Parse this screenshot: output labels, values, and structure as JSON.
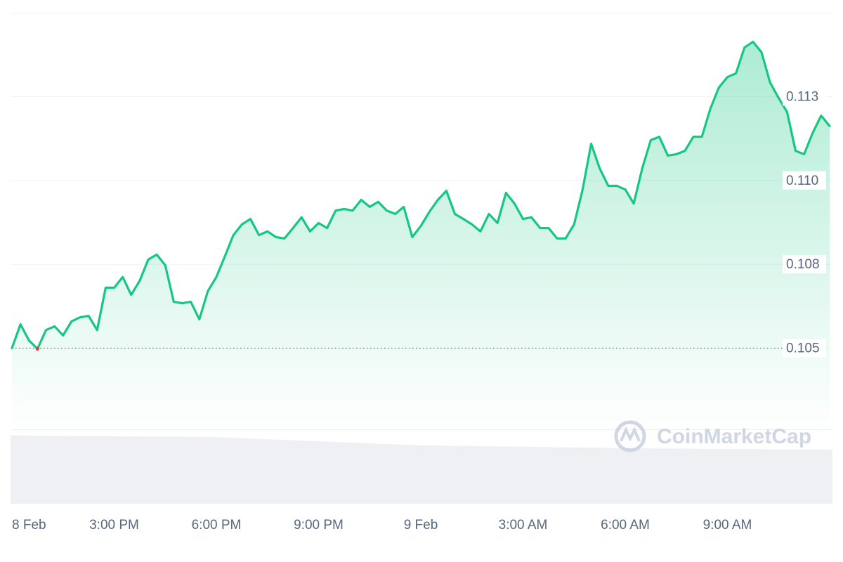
{
  "chart_data": {
    "type": "line",
    "watermark": "CoinMarketCap",
    "color": "#16c784",
    "categories": [
      "8 Feb",
      null,
      null,
      null,
      null,
      null,
      null,
      null,
      null,
      null,
      null,
      null,
      "3:00 PM",
      null,
      null,
      null,
      null,
      null,
      null,
      null,
      null,
      null,
      null,
      null,
      "6:00 PM",
      null,
      null,
      null,
      null,
      null,
      null,
      null,
      null,
      null,
      null,
      null,
      "9:00 PM",
      null,
      null,
      null,
      null,
      null,
      null,
      null,
      null,
      null,
      null,
      null,
      "9 Feb",
      null,
      null,
      null,
      null,
      null,
      null,
      null,
      null,
      null,
      null,
      null,
      "3:00 AM",
      null,
      null,
      null,
      null,
      null,
      null,
      null,
      null,
      null,
      null,
      null,
      "6:00 AM",
      null,
      null,
      null,
      null,
      null,
      null,
      null,
      null,
      null,
      null,
      null,
      "9:00 AM",
      null,
      null,
      null,
      null,
      null,
      null,
      null,
      null,
      null,
      null,
      null,
      null
    ],
    "values": [
      0.105,
      0.10571,
      0.10523,
      0.10498,
      0.10554,
      0.10565,
      0.10538,
      0.1058,
      0.10592,
      0.10596,
      0.10554,
      0.1068,
      0.1068,
      0.10712,
      0.10659,
      0.10701,
      0.10764,
      0.10779,
      0.10747,
      0.10638,
      0.10634,
      0.10638,
      0.10586,
      0.1067,
      0.10712,
      0.10774,
      0.10837,
      0.10869,
      0.10885,
      0.10837,
      0.10848,
      0.10831,
      0.10827,
      0.10858,
      0.1089,
      0.10848,
      0.10873,
      0.10858,
      0.1091,
      0.10915,
      0.1091,
      0.10942,
      0.10921,
      0.10936,
      0.1091,
      0.109,
      0.10921,
      0.10831,
      0.10864,
      0.10906,
      0.10942,
      0.10969,
      0.109,
      0.10885,
      0.10869,
      0.10848,
      0.109,
      0.10873,
      0.10963,
      0.10931,
      0.10885,
      0.1089,
      0.10858,
      0.10858,
      0.10827,
      0.10827,
      0.10869,
      0.10973,
      0.11109,
      0.11036,
      0.10984,
      0.10984,
      0.10973,
      0.10931,
      0.11036,
      0.1112,
      0.1113,
      0.11074,
      0.11078,
      0.11088,
      0.1113,
      0.1113,
      0.11214,
      0.11277,
      0.11308,
      0.11319,
      0.11396,
      0.11413,
      0.11382,
      0.11292,
      0.11246,
      0.11204,
      0.11088,
      0.11078,
      0.11141,
      0.11193,
      0.11162
    ],
    "ylim": [
      0.1025,
      0.115
    ],
    "yticks": [
      0.105,
      {
        "value": 0.1075,
        "label": "0.108"
      },
      {
        "value": 0.11,
        "label": "0.110"
      },
      {
        "value": 0.1125,
        "label": "0.113"
      }
    ],
    "grid": true,
    "baseline": 0.105
  }
}
